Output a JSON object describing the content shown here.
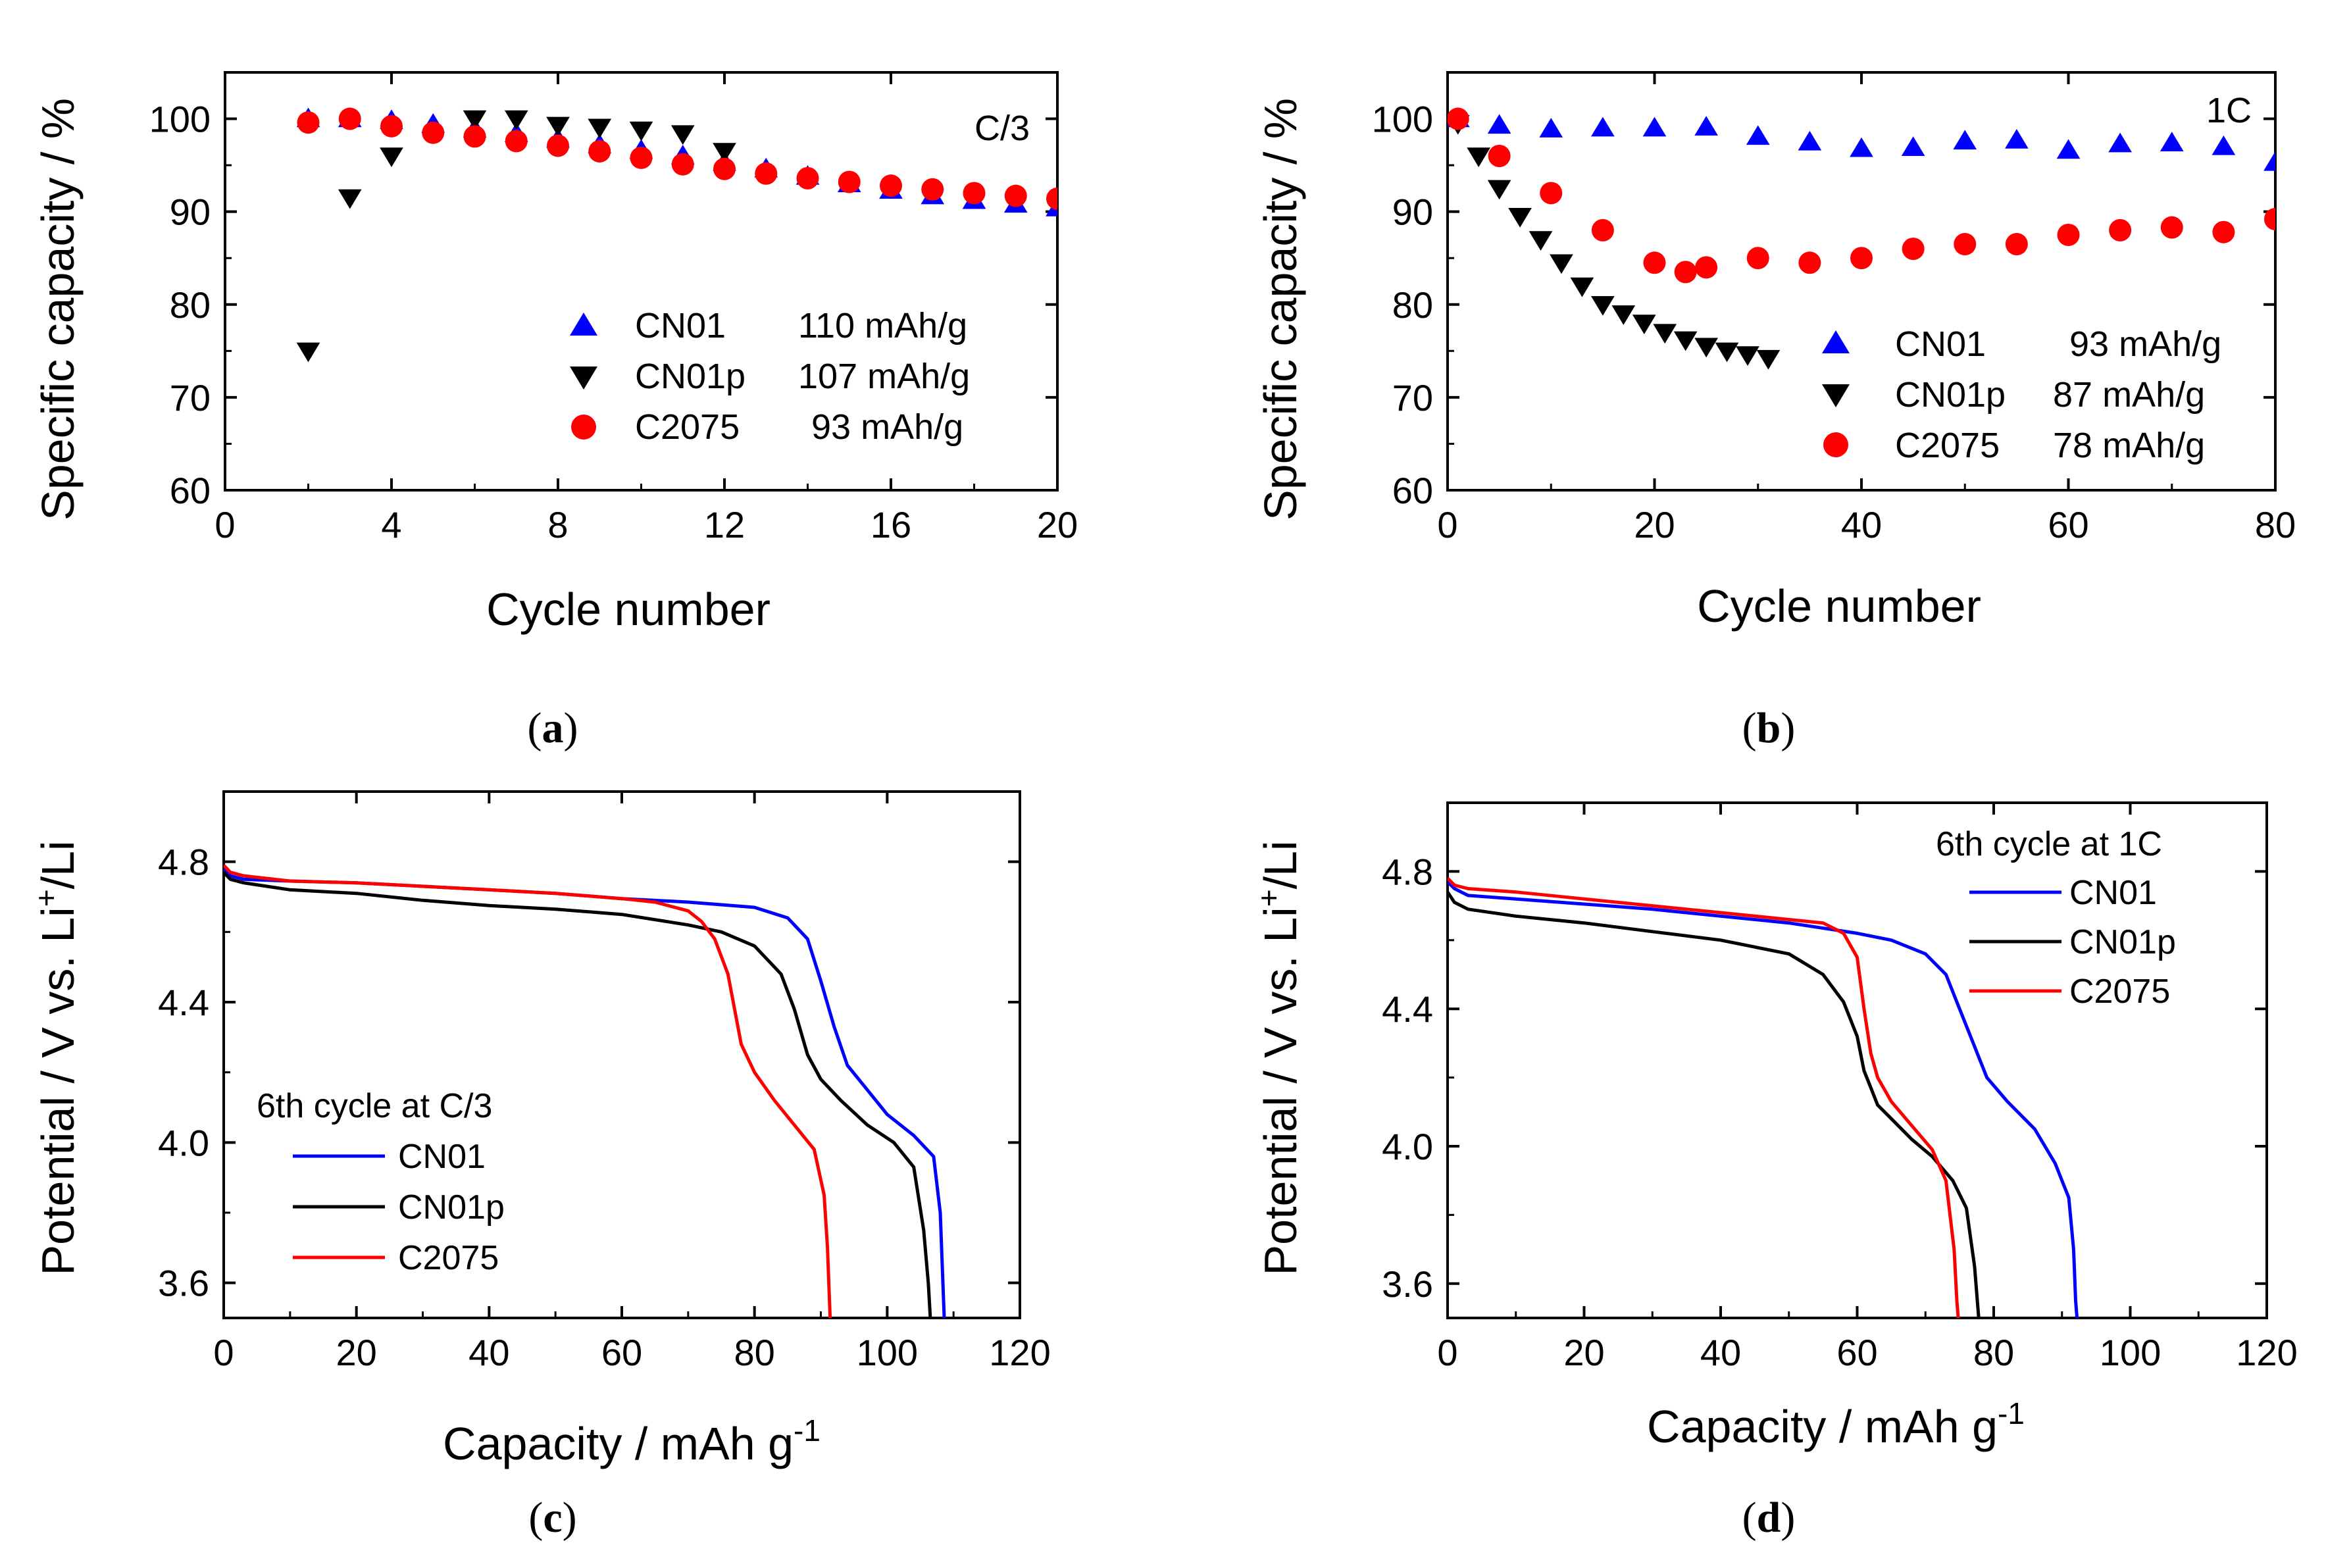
{
  "chart_data": [
    {
      "panel": "a",
      "type": "scatter",
      "panel_label": "a",
      "rate_label": "C/3",
      "xlabel": "Cycle number",
      "ylabel": "Specific capacity / %",
      "xlim": [
        0,
        20
      ],
      "ylim": [
        60,
        105
      ],
      "xticks": [
        0,
        4,
        8,
        12,
        16,
        20
      ],
      "yticks": [
        60,
        70,
        80,
        90,
        100
      ],
      "legend_position": "center-right",
      "series": [
        {
          "name": "CN01",
          "value_label": "110 mAh/g",
          "color": "#0000ff",
          "marker": "triangle-up",
          "x": [
            2,
            3,
            4,
            5,
            6,
            7,
            8,
            9,
            10,
            11,
            12,
            13,
            14,
            15,
            16,
            17,
            18,
            19,
            20
          ],
          "y": [
            100,
            100,
            99.8,
            99.4,
            98.9,
            98.4,
            97.8,
            97.2,
            96.6,
            96.0,
            95.3,
            94.6,
            93.8,
            93.0,
            92.3,
            91.7,
            91.2,
            90.8,
            90.4
          ]
        },
        {
          "name": "CN01p",
          "value_label": "107 mAh/g",
          "color": "#000000",
          "marker": "triangle-down",
          "x": [
            2,
            3,
            4,
            6,
            7,
            8,
            9,
            10,
            11,
            12
          ],
          "y": [
            75,
            91.5,
            96,
            100,
            100,
            99.3,
            99.1,
            98.8,
            98.4,
            96.5
          ]
        },
        {
          "name": "C2075",
          "value_label": "93 mAh/g",
          "color": "#ff0000",
          "marker": "circle",
          "x": [
            2,
            3,
            4,
            5,
            6,
            7,
            8,
            9,
            10,
            11,
            12,
            13,
            14,
            15,
            16,
            17,
            18,
            19,
            20
          ],
          "y": [
            99.6,
            100,
            99.2,
            98.5,
            98.1,
            97.6,
            97.1,
            96.5,
            95.8,
            95.1,
            94.6,
            94.1,
            93.6,
            93.2,
            92.8,
            92.4,
            92.0,
            91.7,
            91.4
          ]
        }
      ]
    },
    {
      "panel": "b",
      "type": "scatter",
      "panel_label": "b",
      "rate_label": "1C",
      "xlabel": "Cycle number",
      "ylabel": "Specific capacity / %",
      "xlim": [
        0,
        80
      ],
      "ylim": [
        60,
        105
      ],
      "xticks": [
        0,
        20,
        40,
        60,
        80
      ],
      "yticks": [
        60,
        70,
        80,
        90,
        100
      ],
      "legend_position": "bottom-right",
      "series": [
        {
          "name": "CN01",
          "value_label": "93 mAh/g",
          "color": "#0000ff",
          "marker": "triangle-up",
          "x": [
            1,
            5,
            10,
            15,
            20,
            25,
            30,
            35,
            40,
            45,
            50,
            55,
            60,
            65,
            70,
            75,
            80
          ],
          "y": [
            100,
            99.3,
            98.9,
            99.0,
            99.0,
            99.1,
            98.1,
            97.5,
            96.8,
            96.9,
            97.6,
            97.7,
            96.6,
            97.3,
            97.4,
            97.0,
            95.3
          ]
        },
        {
          "name": "CN01p",
          "value_label": "87 mAh/g",
          "color": "#000000",
          "marker": "triangle-down",
          "x": [
            1,
            3,
            5,
            7,
            9,
            11,
            13,
            15,
            17,
            19,
            21,
            23,
            25,
            27,
            29,
            31
          ],
          "y": [
            99.5,
            96,
            92.5,
            89.5,
            87,
            84.5,
            82,
            80,
            79,
            78,
            77,
            76.2,
            75.5,
            75,
            74.6,
            74.2
          ]
        },
        {
          "name": "C2075",
          "value_label": "78 mAh/g",
          "color": "#ff0000",
          "marker": "circle",
          "x": [
            1,
            5,
            10,
            15,
            20,
            23,
            25,
            30,
            35,
            40,
            45,
            50,
            55,
            60,
            65,
            70,
            75,
            80
          ],
          "y": [
            100,
            96,
            92,
            88,
            84.5,
            83.5,
            84,
            85,
            84.5,
            85,
            86,
            86.5,
            86.5,
            87.5,
            88,
            88.3,
            87.8,
            89.2
          ]
        }
      ]
    },
    {
      "panel": "c",
      "type": "line",
      "panel_label": "c",
      "xlabel_main": "Capacity / mAh g",
      "xlabel_sup": "-1",
      "ylabel_pre": "Potential / V vs. Li",
      "ylabel_sup": "+",
      "ylabel_post": "/Li",
      "xlim": [
        0,
        120
      ],
      "ylim": [
        3.5,
        5.0
      ],
      "xticks": [
        0,
        20,
        40,
        60,
        80,
        100,
        120
      ],
      "yticks": [
        3.6,
        4.0,
        4.4,
        4.8
      ],
      "legend_title": "6th cycle at C/3",
      "legend_position": "bottom-left",
      "series": [
        {
          "name": "CN01",
          "color": "#0000ff",
          "x": [
            0,
            1,
            3,
            10,
            20,
            30,
            40,
            50,
            60,
            70,
            80,
            85,
            88,
            90,
            92,
            94,
            97,
            100,
            104,
            107,
            108,
            108.4,
            108.6
          ],
          "y": [
            4.78,
            4.76,
            4.75,
            4.745,
            4.74,
            4.73,
            4.72,
            4.71,
            4.695,
            4.685,
            4.67,
            4.64,
            4.58,
            4.46,
            4.33,
            4.22,
            4.15,
            4.08,
            4.02,
            3.96,
            3.8,
            3.6,
            3.5
          ]
        },
        {
          "name": "CN01p",
          "color": "#000000",
          "x": [
            0,
            1,
            3,
            10,
            20,
            30,
            40,
            50,
            60,
            70,
            75,
            80,
            84,
            86,
            88,
            90,
            93,
            97,
            101,
            104,
            105.5,
            106.2,
            106.5
          ],
          "y": [
            4.77,
            4.75,
            4.74,
            4.72,
            4.71,
            4.69,
            4.675,
            4.665,
            4.65,
            4.62,
            4.6,
            4.56,
            4.48,
            4.38,
            4.25,
            4.18,
            4.12,
            4.05,
            4.0,
            3.93,
            3.75,
            3.6,
            3.5
          ]
        },
        {
          "name": "C2075",
          "color": "#ff0000",
          "x": [
            0,
            1,
            3,
            10,
            20,
            30,
            40,
            50,
            60,
            65,
            70,
            72,
            74,
            76,
            77,
            78,
            80,
            83,
            86,
            89,
            90.5,
            91,
            91.2,
            91.4
          ],
          "y": [
            4.79,
            4.77,
            4.76,
            4.745,
            4.74,
            4.73,
            4.72,
            4.71,
            4.695,
            4.685,
            4.66,
            4.63,
            4.58,
            4.48,
            4.38,
            4.28,
            4.2,
            4.12,
            4.05,
            3.98,
            3.85,
            3.7,
            3.6,
            3.5
          ]
        }
      ]
    },
    {
      "panel": "d",
      "type": "line",
      "panel_label": "d",
      "xlabel_main": "Capacity / mAh g",
      "xlabel_sup": "-1",
      "ylabel_pre": "Potential / V vs. Li",
      "ylabel_sup": "+",
      "ylabel_post": "/Li",
      "xlim": [
        0,
        120
      ],
      "ylim": [
        3.5,
        5.0
      ],
      "xticks": [
        0,
        20,
        40,
        60,
        80,
        100,
        120
      ],
      "yticks": [
        3.6,
        4.0,
        4.4,
        4.8
      ],
      "legend_title": "6th cycle at 1C",
      "legend_position": "top-right",
      "series": [
        {
          "name": "CN01",
          "color": "#0000ff",
          "x": [
            0,
            1,
            3,
            10,
            20,
            30,
            40,
            50,
            60,
            65,
            70,
            73,
            75,
            77,
            79,
            82,
            86,
            89,
            91,
            91.7,
            92,
            92.2
          ],
          "y": [
            4.77,
            4.75,
            4.73,
            4.72,
            4.705,
            4.69,
            4.67,
            4.65,
            4.62,
            4.6,
            4.56,
            4.5,
            4.4,
            4.3,
            4.2,
            4.13,
            4.05,
            3.95,
            3.85,
            3.7,
            3.55,
            3.5
          ]
        },
        {
          "name": "CN01p",
          "color": "#000000",
          "x": [
            0,
            1,
            3,
            10,
            20,
            30,
            40,
            50,
            55,
            58,
            60,
            61,
            62,
            63,
            65,
            68,
            71,
            74,
            76,
            77.2,
            77.6,
            77.8
          ],
          "y": [
            4.74,
            4.71,
            4.69,
            4.67,
            4.65,
            4.625,
            4.6,
            4.56,
            4.5,
            4.42,
            4.32,
            4.22,
            4.17,
            4.12,
            4.08,
            4.02,
            3.97,
            3.9,
            3.82,
            3.65,
            3.55,
            3.5
          ]
        },
        {
          "name": "C2075",
          "color": "#ff0000",
          "x": [
            0,
            1,
            3,
            10,
            20,
            30,
            40,
            50,
            55,
            58,
            60,
            61,
            62,
            63,
            65,
            68,
            71,
            73,
            74.2,
            74.6,
            74.8
          ],
          "y": [
            4.78,
            4.76,
            4.75,
            4.74,
            4.72,
            4.7,
            4.68,
            4.66,
            4.65,
            4.62,
            4.55,
            4.4,
            4.27,
            4.2,
            4.13,
            4.06,
            3.99,
            3.9,
            3.7,
            3.55,
            3.5
          ]
        }
      ]
    }
  ]
}
